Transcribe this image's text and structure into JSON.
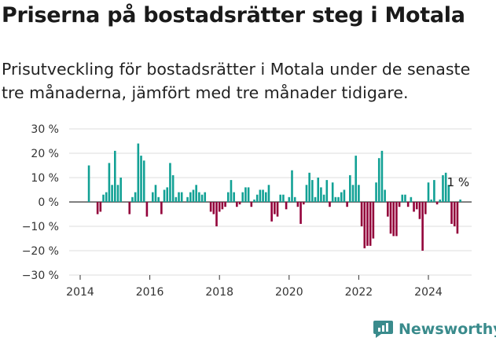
{
  "title": "Priserna på bostadsrätter steg i Motala",
  "subtitle": "Prisutveckling för bostadsrätter i Motala under de senaste tre månaderna, jämfört med tre månader tidigare.",
  "brand": {
    "name": "Newsworthy",
    "icon": "newsworthy-logo-icon"
  },
  "colors": {
    "positive": "#12a195",
    "negative": "#93003a",
    "grid": "#dddddd",
    "axis": "#333333"
  },
  "chart_data": {
    "type": "bar",
    "unit": "%",
    "ylim": [
      -30,
      30
    ],
    "y_ticks": [
      30,
      20,
      10,
      0,
      -10,
      -20,
      -30
    ],
    "y_tick_labels": [
      "30 %",
      "20 %",
      "10 %",
      "0 %",
      "−10 %",
      "−20 %",
      "−30 %"
    ],
    "x_ticks": [
      "2014",
      "2016",
      "2018",
      "2020",
      "2022",
      "2024"
    ],
    "grid": true,
    "annotation": {
      "text": "1 %",
      "date": "2024-12"
    },
    "points": [
      [
        "2014-04",
        15
      ],
      [
        "2014-07",
        -5
      ],
      [
        "2014-08",
        -4
      ],
      [
        "2014-09",
        3
      ],
      [
        "2014-10",
        4
      ],
      [
        "2014-11",
        16
      ],
      [
        "2014-12",
        7
      ],
      [
        "2015-01",
        21
      ],
      [
        "2015-02",
        7
      ],
      [
        "2015-03",
        10
      ],
      [
        "2015-06",
        -5
      ],
      [
        "2015-07",
        2
      ],
      [
        "2015-08",
        4
      ],
      [
        "2015-09",
        24
      ],
      [
        "2015-10",
        19
      ],
      [
        "2015-11",
        17
      ],
      [
        "2015-12",
        -6
      ],
      [
        "2016-02",
        4
      ],
      [
        "2016-03",
        7
      ],
      [
        "2016-04",
        2
      ],
      [
        "2016-05",
        -5
      ],
      [
        "2016-06",
        5
      ],
      [
        "2016-07",
        6
      ],
      [
        "2016-08",
        16
      ],
      [
        "2016-09",
        11
      ],
      [
        "2016-10",
        2
      ],
      [
        "2016-11",
        4
      ],
      [
        "2016-12",
        4
      ],
      [
        "2017-02",
        2
      ],
      [
        "2017-03",
        4
      ],
      [
        "2017-04",
        5
      ],
      [
        "2017-05",
        7
      ],
      [
        "2017-06",
        4
      ],
      [
        "2017-07",
        3
      ],
      [
        "2017-08",
        4
      ],
      [
        "2017-10",
        -4
      ],
      [
        "2017-11",
        -5
      ],
      [
        "2017-12",
        -10
      ],
      [
        "2018-01",
        -4
      ],
      [
        "2018-02",
        -3
      ],
      [
        "2018-03",
        -2
      ],
      [
        "2018-04",
        4
      ],
      [
        "2018-05",
        9
      ],
      [
        "2018-06",
        4
      ],
      [
        "2018-07",
        -2
      ],
      [
        "2018-08",
        -1
      ],
      [
        "2018-09",
        4
      ],
      [
        "2018-10",
        6
      ],
      [
        "2018-11",
        6
      ],
      [
        "2018-12",
        -2
      ],
      [
        "2019-01",
        1
      ],
      [
        "2019-02",
        3
      ],
      [
        "2019-03",
        5
      ],
      [
        "2019-04",
        5
      ],
      [
        "2019-05",
        4
      ],
      [
        "2019-06",
        7
      ],
      [
        "2019-07",
        -8
      ],
      [
        "2019-08",
        -5
      ],
      [
        "2019-09",
        -6
      ],
      [
        "2019-10",
        3
      ],
      [
        "2019-11",
        3
      ],
      [
        "2019-12",
        -3
      ],
      [
        "2020-01",
        2
      ],
      [
        "2020-02",
        13
      ],
      [
        "2020-03",
        2
      ],
      [
        "2020-04",
        -2
      ],
      [
        "2020-05",
        -9
      ],
      [
        "2020-06",
        -1
      ],
      [
        "2020-07",
        7
      ],
      [
        "2020-08",
        12
      ],
      [
        "2020-09",
        9
      ],
      [
        "2020-10",
        2
      ],
      [
        "2020-11",
        10
      ],
      [
        "2020-12",
        6
      ],
      [
        "2021-01",
        3
      ],
      [
        "2021-02",
        9
      ],
      [
        "2021-03",
        -2
      ],
      [
        "2021-04",
        8
      ],
      [
        "2021-05",
        2
      ],
      [
        "2021-06",
        2
      ],
      [
        "2021-07",
        4
      ],
      [
        "2021-08",
        5
      ],
      [
        "2021-09",
        -2
      ],
      [
        "2021-10",
        11
      ],
      [
        "2021-11",
        7
      ],
      [
        "2021-12",
        19
      ],
      [
        "2022-01",
        7
      ],
      [
        "2022-02",
        -10
      ],
      [
        "2022-03",
        -19
      ],
      [
        "2022-04",
        -18
      ],
      [
        "2022-05",
        -18
      ],
      [
        "2022-06",
        -15
      ],
      [
        "2022-07",
        8
      ],
      [
        "2022-08",
        18
      ],
      [
        "2022-09",
        21
      ],
      [
        "2022-10",
        5
      ],
      [
        "2022-11",
        -6
      ],
      [
        "2022-12",
        -13
      ],
      [
        "2023-01",
        -14
      ],
      [
        "2023-02",
        -14
      ],
      [
        "2023-03",
        -2
      ],
      [
        "2023-04",
        3
      ],
      [
        "2023-05",
        3
      ],
      [
        "2023-06",
        -2
      ],
      [
        "2023-07",
        2
      ],
      [
        "2023-08",
        -4
      ],
      [
        "2023-09",
        -3
      ],
      [
        "2023-10",
        -7
      ],
      [
        "2023-11",
        -20
      ],
      [
        "2023-12",
        -5
      ],
      [
        "2024-01",
        8
      ],
      [
        "2024-02",
        1
      ],
      [
        "2024-03",
        9
      ],
      [
        "2024-04",
        -1
      ],
      [
        "2024-05",
        1
      ],
      [
        "2024-06",
        11
      ],
      [
        "2024-07",
        12
      ],
      [
        "2024-08",
        7
      ],
      [
        "2024-09",
        -9
      ],
      [
        "2024-10",
        -10
      ],
      [
        "2024-11",
        -13
      ],
      [
        "2024-12",
        1
      ]
    ]
  }
}
